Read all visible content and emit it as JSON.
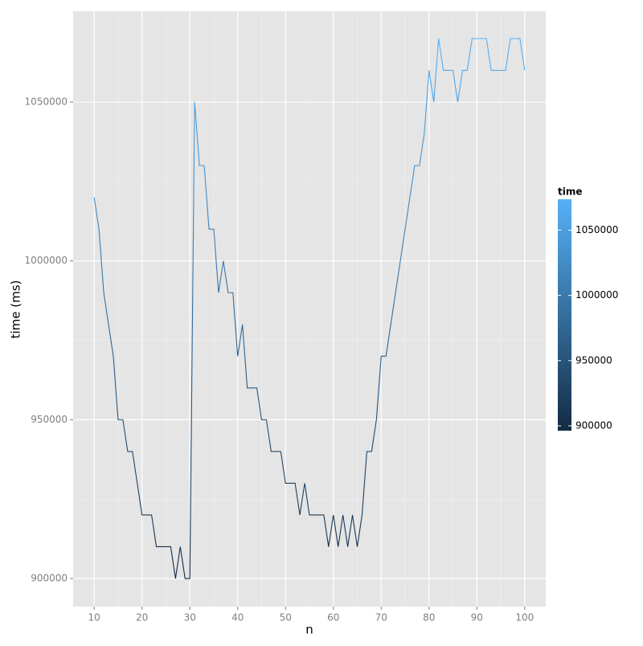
{
  "chart_data": {
    "type": "line",
    "x_label": "n",
    "y_label": "time (ms)",
    "x": [
      10,
      11,
      12,
      13,
      14,
      15,
      16,
      17,
      18,
      19,
      20,
      21,
      22,
      23,
      24,
      25,
      26,
      27,
      28,
      29,
      30,
      31,
      32,
      33,
      34,
      35,
      36,
      37,
      38,
      39,
      40,
      41,
      42,
      43,
      44,
      45,
      46,
      47,
      48,
      49,
      50,
      51,
      52,
      53,
      54,
      55,
      56,
      57,
      58,
      59,
      60,
      61,
      62,
      63,
      64,
      65,
      66,
      67,
      68,
      69,
      70,
      71,
      72,
      73,
      74,
      75,
      76,
      77,
      78,
      79,
      80,
      81,
      82,
      83,
      84,
      85,
      86,
      87,
      88,
      89,
      90,
      91,
      92,
      93,
      94,
      95,
      96,
      97,
      98,
      99,
      100
    ],
    "series": [
      {
        "name": "time",
        "values": [
          1020000,
          1010000,
          990000,
          980000,
          970000,
          950000,
          950000,
          940000,
          940000,
          930000,
          920000,
          920000,
          920000,
          910000,
          910000,
          910000,
          910000,
          900000,
          910000,
          900000,
          900000,
          1050000,
          1030000,
          1030000,
          1010000,
          1010000,
          990000,
          1000000,
          990000,
          990000,
          970000,
          980000,
          960000,
          960000,
          960000,
          950000,
          950000,
          940000,
          940000,
          940000,
          930000,
          930000,
          930000,
          920000,
          930000,
          920000,
          920000,
          920000,
          920000,
          910000,
          920000,
          910000,
          920000,
          910000,
          920000,
          910000,
          920000,
          940000,
          940000,
          950000,
          970000,
          970000,
          980000,
          990000,
          1000000,
          1010000,
          1020000,
          1030000,
          1030000,
          1040000,
          1060000,
          1050000,
          1070000,
          1060000,
          1060000,
          1060000,
          1050000,
          1060000,
          1060000,
          1070000,
          1070000,
          1070000,
          1070000,
          1060000,
          1060000,
          1060000,
          1060000,
          1070000,
          1070000,
          1070000,
          1060000
        ]
      }
    ],
    "color_low": "#132B43",
    "color_high": "#56B1F7",
    "xlim": [
      5.6,
      104.4
    ],
    "ylim": [
      891150,
      1078600
    ],
    "xticks": [
      10,
      20,
      30,
      40,
      50,
      60,
      70,
      80,
      90,
      100
    ],
    "yticks": [
      900000,
      950000,
      1000000,
      1050000
    ],
    "grid": true,
    "legend": {
      "title": "time",
      "ticks": [
        900000,
        950000,
        1000000,
        1050000
      ]
    }
  }
}
